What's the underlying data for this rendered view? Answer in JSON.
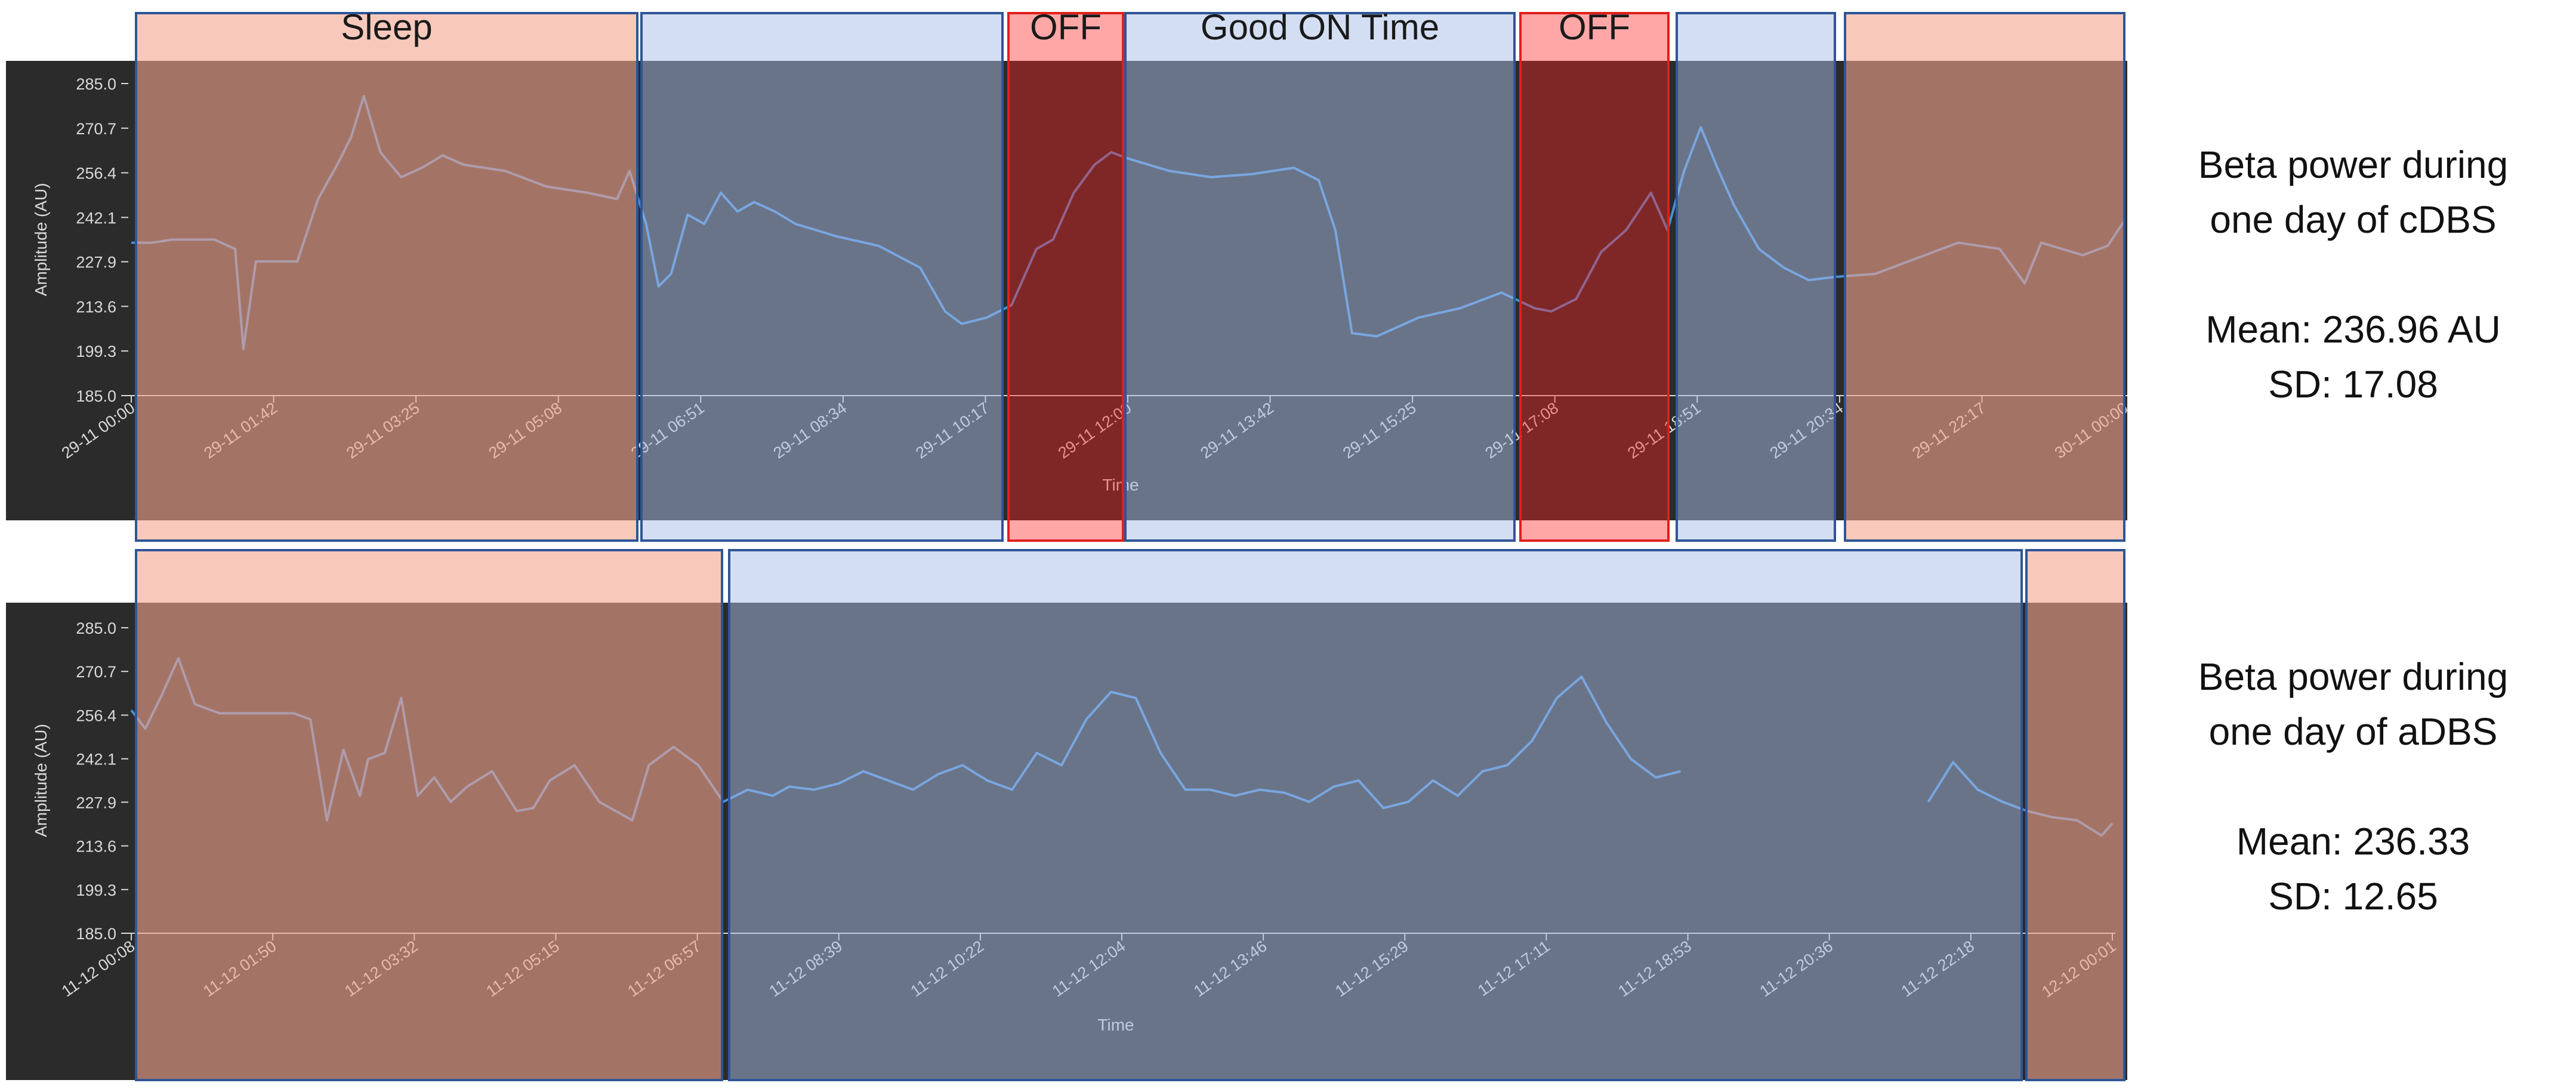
{
  "charts": [
    {
      "id": "cdbs",
      "segments": [
        {
          "label": "Sleep",
          "state": "sleep"
        },
        {
          "label": "",
          "state": "on"
        },
        {
          "label": "OFF",
          "state": "off"
        },
        {
          "label": "Good ON Time",
          "state": "on"
        },
        {
          "label": "OFF",
          "state": "off"
        },
        {
          "label": "",
          "state": "on"
        },
        {
          "label": "",
          "state": "sleep"
        }
      ],
      "summary": {
        "line1": "Beta power during",
        "line2": "one day of cDBS",
        "mean": "Mean: 236.96 AU",
        "sd": "SD: 17.08"
      }
    },
    {
      "id": "adbs",
      "segments": [
        {
          "label": "",
          "state": "sleep"
        },
        {
          "label": "",
          "state": "on"
        },
        {
          "label": "",
          "state": "sleep"
        }
      ],
      "summary": {
        "line1": "Beta power during",
        "line2": "one day of aDBS",
        "mean": "Mean: 236.33",
        "sd": "SD: 12.65"
      }
    }
  ],
  "colors": {
    "plot_background": "#2b2b2b",
    "sleep_band": "#f4a58e",
    "on_band": "#a8bde8",
    "off_band": "#ff2222",
    "band_border_blue": "#2f5597",
    "band_border_red": "#e0201b",
    "line": "#4a8fd6",
    "axis_text": "#d9d9d9",
    "label_text": "#1a1a1a"
  },
  "chart_data": [
    {
      "type": "line",
      "title": "",
      "xlabel": "Time",
      "ylabel": "Amplitude (AU)",
      "ylim": [
        185.0,
        285.0
      ],
      "yticks": [
        "185.0",
        "199.3",
        "213.6",
        "227.9",
        "242.1",
        "256.4",
        "270.7",
        "285.0"
      ],
      "xticks": [
        "29-11 00:00",
        "29-11 01:42",
        "29-11 03:25",
        "29-11 05:08",
        "29-11 06:51",
        "29-11 08:34",
        "29-11 10:17",
        "29-11 12:00",
        "29-11 13:42",
        "29-11 15:25",
        "29-11 17:08",
        "29-11 18:51",
        "29-11 20:34",
        "29-11 22:17",
        "30-11 00:00"
      ],
      "grid": false,
      "x_hours": [
        0.0,
        0.25,
        0.5,
        0.75,
        1.0,
        1.25,
        1.35,
        1.5,
        1.75,
        2.0,
        2.25,
        2.5,
        2.65,
        2.8,
        3.0,
        3.25,
        3.5,
        3.75,
        4.0,
        4.5,
        5.0,
        5.5,
        5.85,
        6.0,
        6.2,
        6.35,
        6.5,
        6.7,
        6.9,
        7.1,
        7.3,
        7.5,
        7.75,
        8.0,
        8.5,
        9.0,
        9.5,
        9.8,
        10.0,
        10.3,
        10.6,
        10.9,
        11.1,
        11.35,
        11.6,
        11.8,
        12.0,
        12.5,
        13.0,
        13.5,
        14.0,
        14.3,
        14.5,
        14.7,
        15.0,
        15.5,
        16.0,
        16.5,
        16.9,
        17.1,
        17.4,
        17.7,
        18.0,
        18.3,
        18.5,
        18.7,
        18.9,
        19.1,
        19.3,
        19.6,
        19.9,
        20.2,
        20.5,
        21.0,
        21.5,
        22.0,
        22.5,
        22.8,
        23.0,
        23.5,
        23.8,
        24.0
      ],
      "series": [
        {
          "values": [
            234,
            234,
            235,
            235,
            235,
            232,
            200,
            228,
            228,
            228,
            248,
            260,
            268,
            281,
            263,
            255,
            258,
            262,
            259,
            257,
            252,
            250,
            248,
            257,
            240,
            220,
            224,
            243,
            240,
            250,
            244,
            247,
            244,
            240,
            236,
            233,
            226,
            212,
            208,
            210,
            214,
            232,
            235,
            250,
            259,
            263,
            261,
            257,
            255,
            256,
            258,
            254,
            238,
            205,
            204,
            210,
            213,
            218,
            213,
            212,
            216,
            231,
            238,
            250,
            238,
            257,
            271,
            258,
            246,
            232,
            226,
            222,
            223,
            224,
            229,
            234,
            232,
            221,
            234,
            230,
            233,
            241
          ]
        }
      ]
    },
    {
      "type": "line",
      "title": "",
      "xlabel": "Time",
      "ylabel": "Amplitude (AU)",
      "ylim": [
        185.0,
        285.0
      ],
      "yticks": [
        "185.0",
        "199.3",
        "213.6",
        "227.9",
        "242.1",
        "256.4",
        "270.7",
        "285.0"
      ],
      "xticks": [
        "11-12 00:08",
        "11-12 01:50",
        "11-12 03:32",
        "11-12 05:15",
        "11-12 06:57",
        "11-12 08:39",
        "11-12 10:22",
        "11-12 12:04",
        "11-12 13:46",
        "11-12 15:29",
        "11-12 17:11",
        "11-12 18:53",
        "11-12 20:36",
        "11-12 22:18",
        "12-12 00:01"
      ],
      "grid": false,
      "note": "signal gap between approx. 11-12 19:10 and 11-12 21:55",
      "x_hours": [
        0.13,
        0.3,
        0.5,
        0.7,
        0.9,
        1.2,
        1.5,
        1.8,
        2.1,
        2.3,
        2.5,
        2.7,
        2.9,
        3.0,
        3.2,
        3.4,
        3.6,
        3.8,
        4.0,
        4.2,
        4.5,
        4.8,
        5.0,
        5.2,
        5.5,
        5.8,
        6.0,
        6.2,
        6.4,
        6.7,
        7.0,
        7.3,
        7.6,
        7.9,
        8.1,
        8.4,
        8.7,
        9.0,
        9.3,
        9.6,
        9.9,
        10.2,
        10.5,
        10.8,
        11.1,
        11.4,
        11.7,
        12.0,
        12.3,
        12.6,
        12.9,
        13.2,
        13.5,
        13.8,
        14.1,
        14.4,
        14.7,
        15.0,
        15.3,
        15.6,
        15.9,
        16.2,
        16.5,
        16.8,
        17.1,
        17.4,
        17.7,
        18.0,
        18.3,
        18.6,
        18.9,
        19.2,
        null,
        21.9,
        22.2,
        22.5,
        22.8,
        23.1,
        23.4,
        23.7,
        24.0,
        24.13
      ],
      "series": [
        {
          "values": [
            258,
            252,
            263,
            275,
            260,
            257,
            257,
            257,
            257,
            255,
            222,
            245,
            230,
            242,
            244,
            262,
            230,
            236,
            228,
            233,
            238,
            225,
            226,
            235,
            240,
            228,
            225,
            222,
            240,
            246,
            240,
            228,
            232,
            230,
            233,
            232,
            234,
            238,
            235,
            232,
            237,
            240,
            235,
            232,
            244,
            240,
            255,
            264,
            262,
            244,
            232,
            232,
            230,
            232,
            231,
            228,
            233,
            235,
            226,
            228,
            235,
            230,
            238,
            240,
            248,
            262,
            269,
            254,
            242,
            236,
            238,
            null,
            null,
            228,
            241,
            232,
            228,
            225,
            223,
            222,
            217,
            221
          ]
        }
      ]
    }
  ]
}
